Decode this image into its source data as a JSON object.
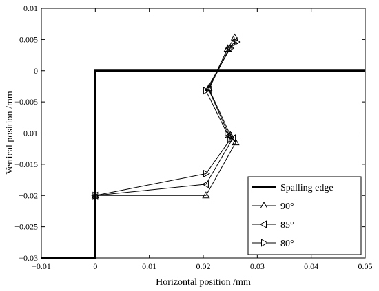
{
  "chart_data": {
    "type": "line",
    "title": "",
    "xlabel": "Horizontal position /mm",
    "ylabel": "Vertical position /mm",
    "xlim": [
      -0.01,
      0.05
    ],
    "ylim": [
      -0.03,
      0.01
    ],
    "xticks": [
      -0.01,
      0,
      0.01,
      0.02,
      0.03,
      0.04,
      0.05
    ],
    "yticks": [
      -0.03,
      -0.025,
      -0.02,
      -0.015,
      -0.01,
      -0.005,
      0,
      0.005,
      0.01
    ],
    "xtick_labels": [
      "−0.01",
      "0",
      "0.01",
      "0.02",
      "0.03",
      "0.04",
      "0.05"
    ],
    "ytick_labels": [
      "−0.03",
      "−0.025",
      "−0.02",
      "−0.015",
      "−0.01",
      "−0.005",
      "0",
      "0.005",
      "0.01"
    ],
    "grid": false,
    "legend_position": "bottom-right",
    "series": [
      {
        "name": "Spalling edge",
        "marker": "none",
        "color": "#000000",
        "x": [
          -0.01,
          0,
          0,
          0.05
        ],
        "y": [
          -0.03,
          -0.03,
          0,
          0
        ]
      },
      {
        "name": "90°",
        "marker": "triangle-up",
        "color": "#000000",
        "x": [
          0,
          0.0205,
          0.026,
          0.025,
          0.021,
          0.0245,
          0.0258
        ],
        "y": [
          -0.02,
          -0.02,
          -0.0115,
          -0.0103,
          -0.0028,
          0.0035,
          0.0053
        ]
      },
      {
        "name": "85°",
        "marker": "triangle-left",
        "color": "#000000",
        "x": [
          0,
          0.0205,
          0.0255,
          0.0248,
          0.021,
          0.0248,
          0.026
        ],
        "y": [
          -0.02,
          -0.0182,
          -0.0108,
          -0.0104,
          -0.003,
          0.0036,
          0.0048
        ]
      },
      {
        "name": "80°",
        "marker": "triangle-right",
        "color": "#000000",
        "x": [
          0,
          0.0205,
          0.025,
          0.0245,
          0.0205,
          0.025,
          0.0262
        ],
        "y": [
          -0.02,
          -0.0165,
          -0.011,
          -0.0102,
          -0.0032,
          0.0036,
          0.0046
        ]
      }
    ]
  }
}
